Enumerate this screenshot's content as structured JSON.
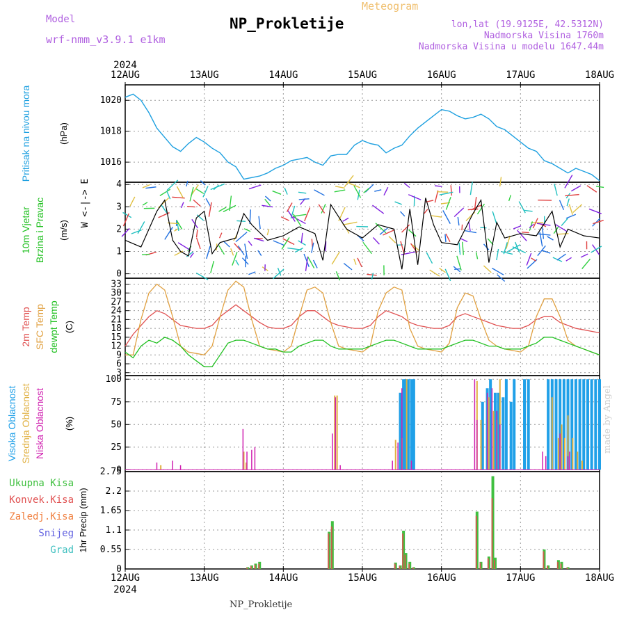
{
  "header": {
    "title": "NP_Prokletije",
    "subtitle": "Meteogram",
    "model_label": "Model",
    "model_name": "wrf-nmm_v3.9.1 e1km",
    "location_lines": [
      "lon,lat (19.9125E, 42.5312N)",
      "Nadmorska Visina 1760m",
      "Nadmorska Visina u modelu 1647.44m"
    ]
  },
  "footer": {
    "station": "NP_Prokletije",
    "credit": "made by Angel"
  },
  "dates": {
    "year": "2024",
    "labels": [
      "12AUG",
      "13AUG",
      "14AUG",
      "15AUG",
      "16AUG",
      "17AUG",
      "18AUG"
    ]
  },
  "colors": {
    "pressure": "#1ea0e0",
    "temp2m": "#e05050",
    "sfc": "#e0a040",
    "dewpt": "#20c020",
    "high_cloud": "#20a0e8",
    "mid_cloud": "#e0b040",
    "low_cloud": "#d020b0",
    "total_precip": "#40c040",
    "conv_precip": "#e05050",
    "frozen": "#f08040",
    "snow": "#6060e0",
    "graupel": "#40c0c0"
  },
  "chart_data": [
    {
      "type": "line",
      "panel": "pressure",
      "ylabel": "Pritisak na nivou mora",
      "unit": "(hPa)",
      "yticks": [
        1016,
        1018,
        1020
      ],
      "ylim": [
        1014.7,
        1021.0
      ],
      "x_days": [
        0,
        0.1,
        0.2,
        0.3,
        0.4,
        0.5,
        0.6,
        0.7,
        0.8,
        0.9,
        1.0,
        1.1,
        1.2,
        1.3,
        1.4,
        1.5,
        1.6,
        1.7,
        1.8,
        1.9,
        2.0,
        2.1,
        2.2,
        2.3,
        2.4,
        2.5,
        2.6,
        2.7,
        2.8,
        2.9,
        3.0,
        3.1,
        3.2,
        3.3,
        3.4,
        3.5,
        3.6,
        3.7,
        3.8,
        3.9,
        4.0,
        4.1,
        4.2,
        4.3,
        4.4,
        4.5,
        4.6,
        4.7,
        4.8,
        4.9,
        5.0,
        5.1,
        5.2,
        5.3,
        5.4,
        5.5,
        5.6,
        5.7,
        5.8,
        5.9,
        6.0
      ],
      "values": [
        1020.2,
        1020.4,
        1020.0,
        1019.2,
        1018.2,
        1017.6,
        1017.0,
        1016.7,
        1017.2,
        1017.6,
        1017.3,
        1016.9,
        1016.6,
        1016.0,
        1015.7,
        1014.9,
        1015.0,
        1015.1,
        1015.3,
        1015.6,
        1015.8,
        1016.1,
        1016.2,
        1016.3,
        1016.0,
        1015.8,
        1016.4,
        1016.5,
        1016.5,
        1017.1,
        1017.4,
        1017.2,
        1017.1,
        1016.6,
        1016.9,
        1017.1,
        1017.7,
        1018.2,
        1018.6,
        1019.0,
        1019.4,
        1019.3,
        1019.0,
        1018.8,
        1018.9,
        1019.1,
        1018.8,
        1018.3,
        1018.1,
        1017.7,
        1017.3,
        1016.9,
        1016.7,
        1016.1,
        1015.9,
        1015.6,
        1015.3,
        1015.6,
        1015.4,
        1015.2,
        1014.8
      ]
    },
    {
      "type": "line",
      "panel": "wind",
      "ylabel": "10m Vjetar Brzina i Pravac",
      "unit": "(m/s)",
      "yticks": [
        0,
        1,
        2,
        3,
        4
      ],
      "ylim": [
        -0.2,
        4.1
      ],
      "compass": "W <-|-> E",
      "x_days": [
        0,
        0.2,
        0.4,
        0.5,
        0.6,
        0.7,
        0.8,
        0.9,
        1.0,
        1.1,
        1.2,
        1.4,
        1.5,
        1.6,
        1.8,
        2.0,
        2.2,
        2.4,
        2.5,
        2.6,
        2.8,
        3.0,
        3.2,
        3.4,
        3.5,
        3.6,
        3.7,
        3.8,
        3.9,
        4.0,
        4.2,
        4.4,
        4.5,
        4.6,
        4.7,
        4.8,
        5.0,
        5.2,
        5.4,
        5.5,
        5.6,
        5.8,
        6.0
      ],
      "values": [
        1.5,
        1.2,
        2.8,
        3.3,
        1.5,
        1.0,
        0.8,
        2.5,
        2.8,
        0.9,
        1.4,
        1.6,
        2.7,
        2.2,
        1.5,
        1.7,
        2.1,
        1.8,
        0.6,
        3.1,
        2.0,
        1.6,
        2.2,
        2.0,
        0.2,
        2.9,
        0.4,
        3.4,
        2.2,
        1.4,
        1.3,
        2.7,
        3.3,
        0.5,
        2.3,
        1.6,
        1.8,
        1.7,
        2.8,
        1.2,
        2.0,
        1.7,
        1.6
      ]
    },
    {
      "type": "line",
      "panel": "temperature",
      "ylabels": [
        "2m Temp",
        "SFC Temp",
        "dewpt Temp"
      ],
      "unit": "(C)",
      "yticks": [
        3,
        6,
        9,
        12,
        15,
        18,
        21,
        24,
        27,
        30,
        33
      ],
      "ylim": [
        2,
        35
      ],
      "x_days": [
        0,
        0.1,
        0.2,
        0.3,
        0.4,
        0.5,
        0.6,
        0.7,
        0.8,
        0.9,
        1.0,
        1.1,
        1.2,
        1.3,
        1.4,
        1.5,
        1.6,
        1.7,
        1.8,
        1.9,
        2.0,
        2.1,
        2.2,
        2.3,
        2.4,
        2.5,
        2.6,
        2.7,
        2.8,
        2.9,
        3.0,
        3.1,
        3.2,
        3.3,
        3.4,
        3.5,
        3.6,
        3.7,
        3.8,
        3.9,
        4.0,
        4.1,
        4.2,
        4.3,
        4.4,
        4.5,
        4.6,
        4.7,
        4.8,
        4.9,
        5.0,
        5.1,
        5.2,
        5.3,
        5.4,
        5.5,
        5.6,
        5.7,
        5.8,
        5.9,
        6.0
      ],
      "series": [
        {
          "name": "2m Temp",
          "color_key": "temp2m",
          "values": [
            12,
            16,
            19,
            22,
            24,
            23,
            21,
            19,
            18.5,
            18,
            18,
            19,
            22,
            24,
            26,
            24,
            22,
            20,
            18.5,
            18,
            18,
            19,
            22,
            24,
            24,
            22,
            20,
            19,
            18.5,
            18,
            18,
            19,
            22,
            24,
            23,
            22,
            20,
            19,
            18.5,
            18,
            18,
            19,
            22,
            23,
            22,
            21,
            20,
            19,
            18.5,
            18,
            18,
            19,
            21,
            22,
            22,
            20,
            19,
            18,
            17.5,
            17,
            16.5
          ]
        },
        {
          "name": "SFC Temp",
          "color_key": "sfc",
          "values": [
            9,
            9,
            21,
            30,
            33,
            31,
            22,
            12,
            10,
            9.5,
            9,
            12,
            22,
            31,
            34,
            32,
            21,
            12,
            11,
            10.5,
            10,
            12,
            22,
            31,
            32,
            30,
            20,
            12,
            11,
            10.5,
            10,
            12,
            24,
            30,
            32,
            31,
            18,
            12,
            11,
            10.5,
            10,
            13,
            25,
            30,
            29,
            21,
            14,
            12,
            11,
            10.5,
            10,
            12,
            22,
            28,
            28,
            22,
            14,
            12,
            11,
            10,
            9
          ]
        },
        {
          "name": "dewpt Temp",
          "color_key": "dewpt",
          "values": [
            10,
            8,
            12,
            14,
            13,
            15,
            14,
            12,
            9,
            7,
            5,
            5,
            9,
            13,
            14,
            14,
            13,
            12,
            11,
            11,
            10,
            10,
            12,
            13,
            14,
            14,
            12,
            11,
            11,
            11,
            11,
            12,
            13,
            14,
            14,
            13,
            12,
            11,
            11,
            11,
            11,
            12,
            13,
            14,
            14,
            13,
            12,
            12,
            11,
            11,
            11,
            12,
            13,
            15,
            15,
            14,
            13,
            12,
            11,
            10,
            9
          ]
        }
      ]
    },
    {
      "type": "bar",
      "panel": "cloud",
      "ylabels": [
        "Visoka Oblacnost",
        "Srednja Oblacnost",
        "Niska Oblacnost"
      ],
      "unit": "(%)",
      "yticks": [
        0,
        25,
        50,
        75,
        100
      ],
      "ylim": [
        -2,
        104
      ],
      "series": [
        {
          "name": "Visoka Oblacnost",
          "color_key": "high_cloud",
          "x_days": [
            3.48,
            3.52,
            3.55,
            3.58,
            3.62,
            3.65,
            4.52,
            4.58,
            4.62,
            4.68,
            4.72,
            4.78,
            4.82,
            4.88,
            4.92,
            5.05,
            5.1,
            5.35,
            5.4,
            5.45,
            5.5,
            5.55,
            5.6,
            5.65,
            5.7,
            5.75,
            5.8,
            5.85,
            5.9,
            5.95,
            6.0
          ],
          "values": [
            85,
            100,
            100,
            100,
            100,
            100,
            75,
            90,
            100,
            85,
            85,
            80,
            100,
            75,
            100,
            100,
            100,
            100,
            100,
            100,
            100,
            100,
            100,
            100,
            100,
            100,
            100,
            100,
            100,
            100,
            100
          ]
        },
        {
          "name": "Srednja Oblacnost",
          "color_key": "mid_cloud",
          "x_days": [
            0.45,
            1.5,
            1.53,
            2.65,
            2.68,
            3.42,
            3.5,
            3.56,
            4.45,
            4.5,
            4.6,
            4.66,
            4.7,
            4.74,
            5.4,
            5.48,
            5.52,
            5.56,
            5.6,
            5.66,
            5.72,
            5.78
          ],
          "values": [
            5,
            20,
            8,
            82,
            82,
            33,
            35,
            100,
            98,
            55,
            80,
            65,
            55,
            100,
            80,
            35,
            50,
            35,
            60,
            35,
            20,
            10
          ]
        },
        {
          "name": "Niska Oblacnost",
          "color_key": "low_cloud",
          "x_days": [
            0.4,
            0.6,
            0.7,
            1.49,
            1.54,
            1.6,
            1.64,
            2.62,
            2.66,
            2.72,
            3.38,
            3.45,
            3.5,
            3.62,
            4.42,
            4.45,
            4.58,
            4.64,
            4.7,
            4.74,
            5.28,
            5.32,
            5.5,
            5.6,
            5.62
          ],
          "values": [
            8,
            10,
            5,
            45,
            20,
            22,
            25,
            40,
            80,
            5,
            10,
            30,
            90,
            10,
            100,
            55,
            85,
            90,
            65,
            50,
            20,
            15,
            40,
            15,
            20
          ]
        }
      ]
    },
    {
      "type": "bar",
      "panel": "precipitation",
      "ylabels": [
        "Ukupna Kisa",
        "Konvek.Kisa",
        "Zaledj.Kisa",
        "Snijeg",
        "Grad"
      ],
      "unit": "1hr Precip (mm)",
      "yticks": [
        0,
        0.55,
        1.1,
        1.65,
        2.2,
        2.75
      ],
      "ylim": [
        0,
        2.75
      ],
      "x_days": [
        1.55,
        1.6,
        1.65,
        1.7,
        2.58,
        2.62,
        3.42,
        3.48,
        3.52,
        3.55,
        3.6,
        3.65,
        4.45,
        4.5,
        4.6,
        4.65,
        4.68,
        5.3,
        5.35,
        5.48,
        5.52,
        5.6
      ],
      "total": [
        0.05,
        0.1,
        0.15,
        0.2,
        1.05,
        1.35,
        0.18,
        0.1,
        1.08,
        0.45,
        0.2,
        0.05,
        1.62,
        0.2,
        0.35,
        2.62,
        0.32,
        0.55,
        0.1,
        0.25,
        0.2,
        0.05
      ],
      "convective": [
        0.04,
        0.08,
        0.12,
        0.15,
        1.0,
        1.2,
        0.15,
        0.08,
        1.0,
        0.4,
        0.15,
        0.04,
        1.5,
        0.18,
        0.3,
        2.0,
        0.25,
        0.5,
        0.08,
        0.2,
        0.15,
        0.04
      ]
    }
  ]
}
